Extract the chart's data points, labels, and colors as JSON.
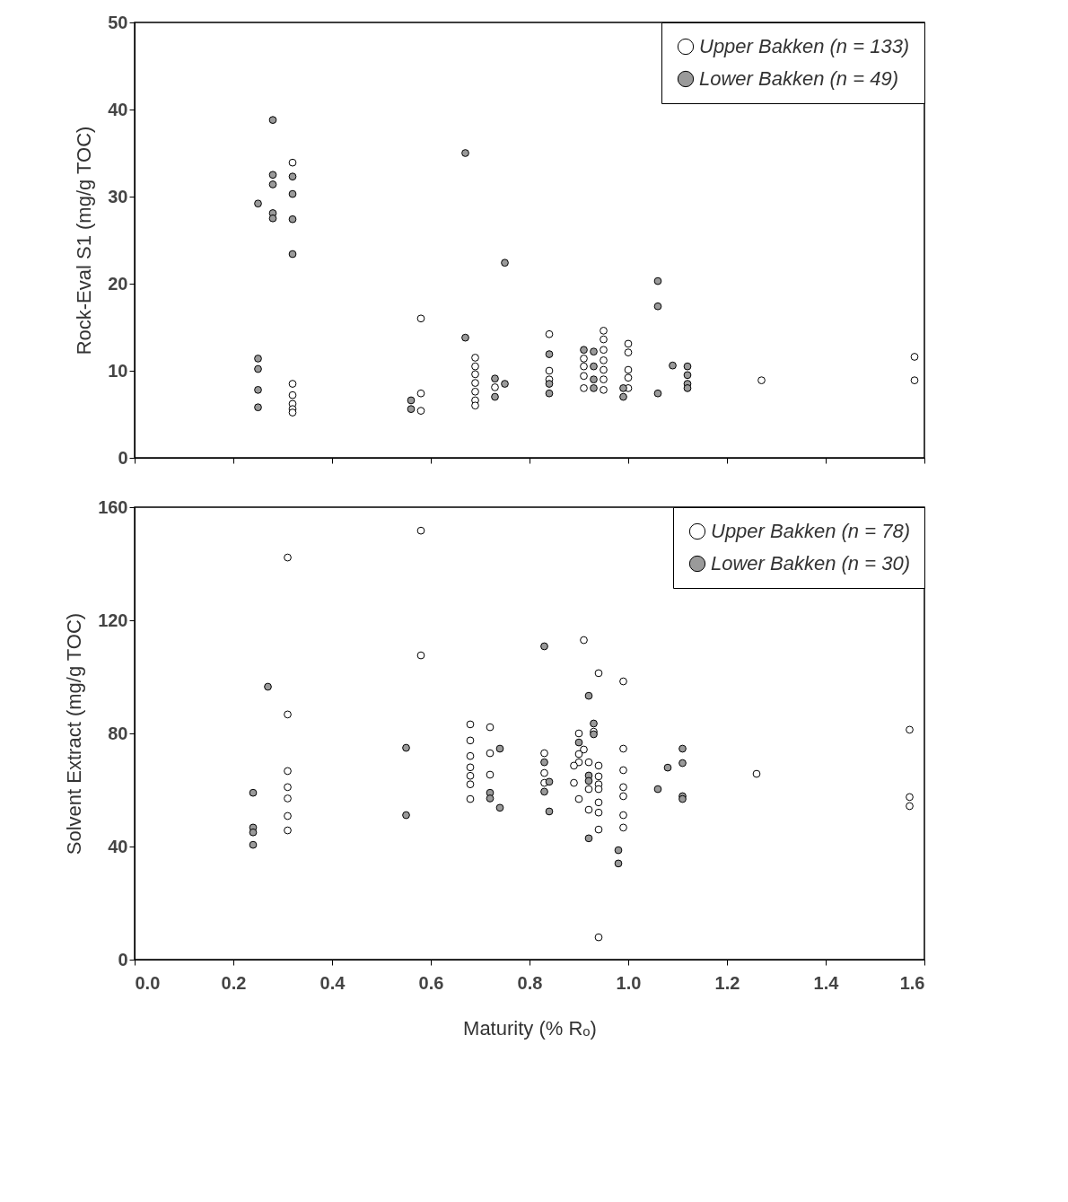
{
  "chart_data": [
    {
      "type": "scatter",
      "ylabel": "Rock-Eval S1 (mg/g TOC)",
      "xlim": [
        0,
        1.6
      ],
      "xticks": [
        {
          "value": 0,
          "label": null
        },
        {
          "value": 0.2,
          "label": null
        },
        {
          "value": 0.4,
          "label": null
        },
        {
          "value": 0.6,
          "label": null
        },
        {
          "value": 0.8,
          "label": null
        },
        {
          "value": 1,
          "label": null
        },
        {
          "value": 1.2,
          "label": null
        },
        {
          "value": 1.4,
          "label": null
        },
        {
          "value": 1.6,
          "label": null
        }
      ],
      "ylim": [
        0,
        50
      ],
      "yticks": [
        0,
        10,
        20,
        30,
        40,
        50
      ],
      "tick_labels": "y",
      "legend": "top right",
      "marker": "circle",
      "grid": false,
      "series": [
        {
          "name": "Upper Bakken (n = 133)",
          "color": "#ffffff",
          "x": [
            0.32,
            0.32,
            0.32,
            0.32,
            0.32,
            0.32,
            0.58,
            0.58,
            0.58,
            0.69,
            0.69,
            0.69,
            0.69,
            0.69,
            0.69,
            0.69,
            0.73,
            0.84,
            0.84,
            0.84,
            0.91,
            0.91,
            0.91,
            0.91,
            0.95,
            0.95,
            0.95,
            0.95,
            0.95,
            0.95,
            0.95,
            1.0,
            1.0,
            1.0,
            1.0,
            1.0,
            1.27,
            1.58,
            1.58
          ],
          "values": [
            33.9,
            8.5,
            7.2,
            6.2,
            5.6,
            5.2,
            16.0,
            7.4,
            5.4,
            11.5,
            10.5,
            9.6,
            8.6,
            7.6,
            6.6,
            6.0,
            8.1,
            14.2,
            10.0,
            9.0,
            11.4,
            10.5,
            9.4,
            8.0,
            14.6,
            13.6,
            12.4,
            11.2,
            10.1,
            9.0,
            7.8,
            13.1,
            12.1,
            10.1,
            9.2,
            8.0,
            8.9,
            11.6,
            8.9
          ]
        },
        {
          "name": "Lower Bakken (n = 49)",
          "color": "#9a9a9a",
          "x": [
            0.28,
            0.28,
            0.28,
            0.32,
            0.32,
            0.25,
            0.28,
            0.28,
            0.32,
            0.32,
            0.67,
            0.75,
            0.67,
            0.25,
            0.25,
            0.25,
            0.25,
            0.56,
            0.56,
            0.73,
            0.73,
            0.75,
            0.84,
            0.84,
            0.84,
            0.91,
            0.93,
            0.93,
            0.93,
            0.93,
            0.99,
            0.99,
            1.06,
            1.06,
            1.06,
            1.09,
            1.12,
            1.12,
            1.12,
            1.12
          ],
          "values": [
            38.8,
            32.5,
            31.4,
            32.3,
            30.3,
            29.2,
            28.1,
            27.5,
            27.4,
            23.4,
            35.0,
            22.4,
            13.8,
            11.4,
            10.2,
            7.8,
            5.8,
            6.6,
            5.6,
            9.1,
            7.0,
            8.5,
            11.9,
            8.5,
            7.4,
            12.4,
            12.2,
            10.5,
            9.0,
            8.0,
            8.0,
            7.0,
            20.3,
            17.4,
            7.4,
            10.6,
            10.5,
            9.5,
            8.5,
            8.0
          ]
        }
      ]
    },
    {
      "type": "scatter",
      "xlabel": "Maturity (% Rₒ)",
      "ylabel": "Solvent Extract (mg/g TOC)",
      "xlim": [
        0,
        1.6
      ],
      "xticks": [
        {
          "value": 0,
          "label": "0.0"
        },
        {
          "value": 0.2,
          "label": "0.2"
        },
        {
          "value": 0.4,
          "label": "0.4"
        },
        {
          "value": 0.6,
          "label": "0.6"
        },
        {
          "value": 0.8,
          "label": "0.8"
        },
        {
          "value": 1,
          "label": "1.0"
        },
        {
          "value": 1.2,
          "label": "1.2"
        },
        {
          "value": 1.4,
          "label": "1.4"
        },
        {
          "value": 1.6,
          "label": "1.6"
        }
      ],
      "ylim": [
        0,
        160
      ],
      "yticks": [
        0,
        40,
        80,
        120,
        160
      ],
      "legend": "top right",
      "marker": "circle",
      "grid": false,
      "series": [
        {
          "name": "Upper Bakken (n = 78)",
          "color": "#ffffff",
          "x": [
            0.58,
            0.31,
            0.58,
            0.31,
            0.31,
            0.31,
            0.31,
            0.31,
            0.31,
            0.68,
            0.68,
            0.68,
            0.68,
            0.68,
            0.68,
            0.68,
            0.72,
            0.72,
            0.72,
            0.91,
            0.94,
            0.99,
            0.93,
            0.9,
            0.91,
            0.9,
            0.9,
            0.89,
            0.83,
            0.83,
            0.83,
            0.92,
            0.94,
            0.92,
            0.89,
            0.9,
            0.92,
            0.94,
            0.94,
            0.94,
            0.94,
            0.94,
            0.94,
            0.99,
            0.99,
            0.99,
            0.99,
            0.99,
            0.99,
            0.94,
            1.26,
            1.57,
            1.57,
            1.57
          ],
          "values": [
            151.7,
            142.2,
            107.6,
            86.7,
            66.7,
            61,
            57,
            50.8,
            45.7,
            83.2,
            77.5,
            72,
            68,
            65,
            62,
            56.8,
            82.2,
            73,
            65.4,
            113,
            101.3,
            98.4,
            80.6,
            80,
            74.3,
            72.7,
            69.8,
            68.6,
            73,
            66,
            62.5,
            69.8,
            68.6,
            60.3,
            62.5,
            56.8,
            53,
            64.8,
            62,
            60.3,
            55.6,
            52,
            46,
            74.6,
            67,
            61,
            57.8,
            51.1,
            46.7,
            7.9,
            65.7,
            81.3,
            57.5,
            54.3
          ]
        },
        {
          "name": "Lower Bakken (n = 30)",
          "color": "#9a9a9a",
          "x": [
            0.27,
            0.55,
            0.24,
            0.24,
            0.24,
            0.24,
            0.55,
            0.74,
            0.72,
            0.72,
            0.74,
            0.83,
            0.92,
            0.93,
            0.93,
            0.9,
            0.83,
            0.83,
            0.84,
            0.84,
            0.92,
            0.92,
            0.92,
            0.98,
            0.98,
            1.06,
            1.08,
            1.11,
            1.11,
            1.11,
            1.11
          ],
          "values": [
            96.5,
            74.9,
            59,
            46.7,
            45,
            40.6,
            51.1,
            74.6,
            59,
            57,
            53.7,
            110.8,
            93.3,
            83.5,
            79.7,
            76.8,
            69.8,
            59.4,
            62.9,
            52.4,
            65.1,
            63.2,
            42.9,
            38.7,
            34,
            60.3,
            67.9,
            74.6,
            69.5,
            57.8,
            56.8
          ]
        }
      ]
    }
  ]
}
